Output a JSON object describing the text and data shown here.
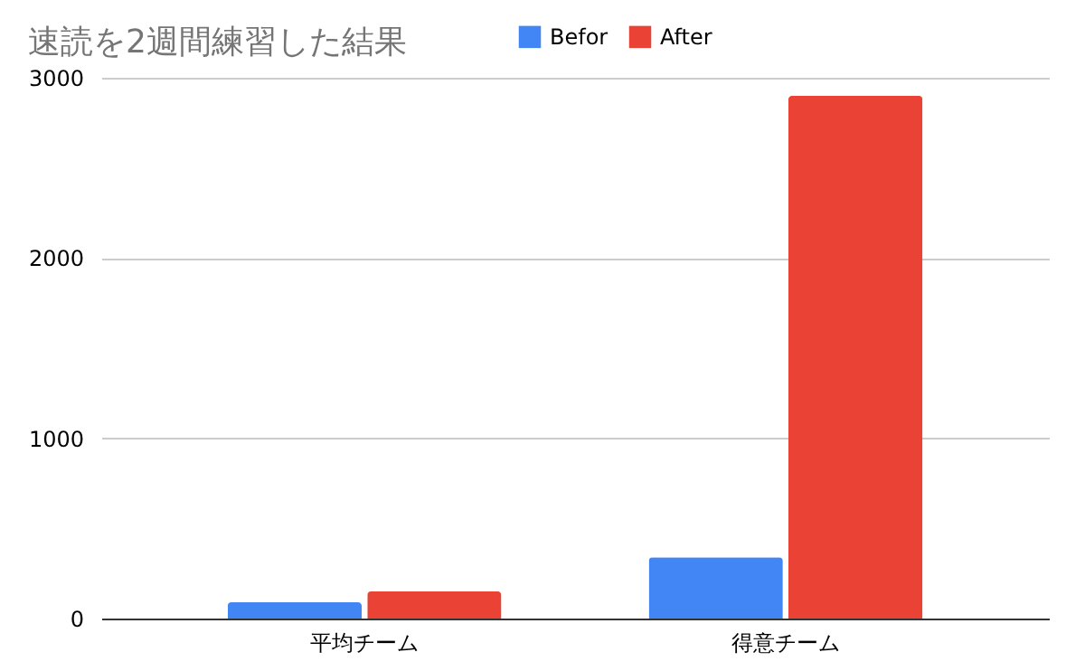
{
  "chart_data": {
    "type": "bar",
    "title": "速読を2週間練習した結果",
    "categories": [
      "平均チーム",
      "得意チーム"
    ],
    "series": [
      {
        "name": "Befor",
        "color": "#4285f4",
        "values": [
          90,
          340
        ]
      },
      {
        "name": "After",
        "color": "#ea4335",
        "values": [
          150,
          2900
        ]
      }
    ],
    "ylim": [
      0,
      3000
    ],
    "yticks": [
      0,
      1000,
      2000,
      3000
    ],
    "grid": "y",
    "legend": "top"
  }
}
